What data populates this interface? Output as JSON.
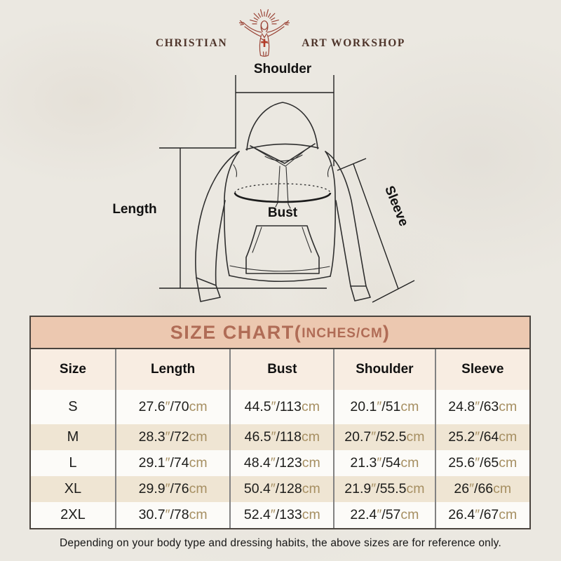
{
  "logo": {
    "brand_left": "CHRISTIAN",
    "brand_right": "ART WORKSHOP"
  },
  "diagram": {
    "shoulder_label": "Shoulder",
    "length_label": "Length",
    "bust_label": "Bust",
    "sleeve_label": "Sleeve"
  },
  "size_chart": {
    "title": "SIZE CHART",
    "paren_open": "(",
    "subtitle": "INCHES/CM",
    "paren_close": ")",
    "columns": [
      "Size",
      "Length",
      "Bust",
      "Shoulder",
      "Sleeve"
    ],
    "unit_inch_mark": "″",
    "unit_cm": "cm",
    "slash": "/",
    "rows": [
      {
        "size": "S",
        "length_in": "27.6",
        "length_cm": "70",
        "bust_in": "44.5",
        "bust_cm": "113",
        "shoulder_in": "20.1",
        "shoulder_cm": "51",
        "sleeve_in": "24.8",
        "sleeve_cm": "63"
      },
      {
        "size": "M",
        "length_in": "28.3",
        "length_cm": "72",
        "bust_in": "46.5",
        "bust_cm": "118",
        "shoulder_in": "20.7",
        "shoulder_cm": "52.5",
        "sleeve_in": "25.2",
        "sleeve_cm": "64"
      },
      {
        "size": "L",
        "length_in": "29.1",
        "length_cm": "74",
        "bust_in": "48.4",
        "bust_cm": "123",
        "shoulder_in": "21.3",
        "shoulder_cm": "54",
        "sleeve_in": "25.6",
        "sleeve_cm": "65"
      },
      {
        "size": "XL",
        "length_in": "29.9",
        "length_cm": "76",
        "bust_in": "50.4",
        "bust_cm": "128",
        "shoulder_in": "21.9",
        "shoulder_cm": "55.5",
        "sleeve_in": "26",
        "sleeve_cm": "66"
      },
      {
        "size": "2XL",
        "length_in": "30.7",
        "length_cm": "78",
        "bust_in": "52.4",
        "bust_cm": "133",
        "shoulder_in": "22.4",
        "shoulder_cm": "57",
        "sleeve_in": "26.4",
        "sleeve_cm": "67"
      }
    ]
  },
  "footer": {
    "note": "Depending on your body type and dressing habits, the above sizes are for reference only."
  },
  "colors": {
    "accent_red": "#9a4336",
    "cross_red": "#b23b28",
    "band_bg": "#ecc8b0",
    "band_text": "#b06c56",
    "unit_tan": "#a68f62",
    "row_beige": "#efe5d3",
    "header_row_bg": "#f8ede2",
    "page_bg": "#ebe8e1"
  }
}
